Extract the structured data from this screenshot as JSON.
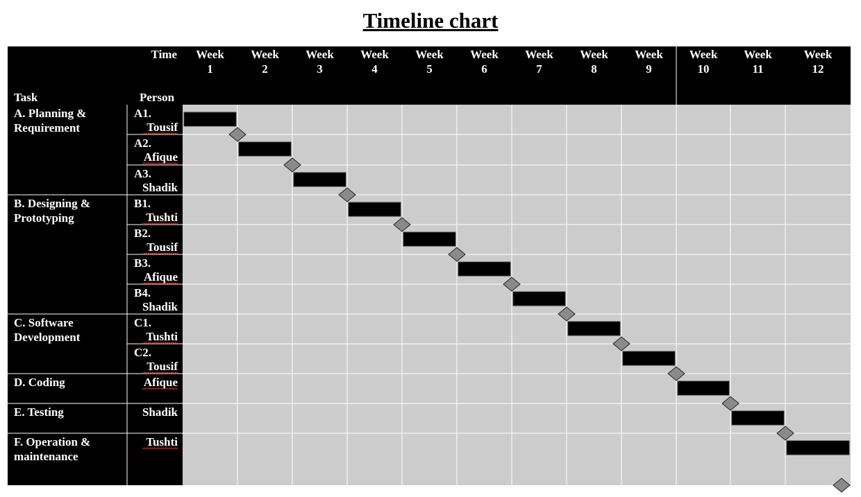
{
  "title": "Timeline chart",
  "header": {
    "time_label": "Time",
    "task_label": "Task",
    "person_label": "Person"
  },
  "colors": {
    "header_bg": "#000000",
    "grid_bg": "#cccccc",
    "bar": "#000000",
    "milestone": "#8a8a8a",
    "text": "#ffffff"
  },
  "chart_data": {
    "type": "gantt",
    "title": "Timeline chart",
    "weeks": [
      "Week 1",
      "Week 2",
      "Week 3",
      "Week 4",
      "Week 5",
      "Week 6",
      "Week 7",
      "Week 8",
      "Week 9",
      "Week 10",
      "Week 11",
      "Week 12"
    ],
    "groups": [
      {
        "task": "A. Planning & Requirement",
        "rows": [
          0,
          1,
          2
        ]
      },
      {
        "task": "B. Designing & Prototyping",
        "rows": [
          3,
          4,
          5,
          6
        ]
      },
      {
        "task": "C. Software Development",
        "rows": [
          7,
          8
        ]
      },
      {
        "task": "D. Coding",
        "rows": [
          9
        ]
      },
      {
        "task": "E. Testing",
        "rows": [
          10
        ]
      },
      {
        "task": "F. Operation & maintenance",
        "rows": [
          11
        ]
      }
    ],
    "rows": [
      {
        "code": "A1.",
        "person": "Tousif",
        "start_week": 1.0,
        "end_week": 2.0
      },
      {
        "code": "A2.",
        "person": "Afique",
        "start_week": 2.0,
        "end_week": 3.0
      },
      {
        "code": "A3.",
        "person": "Shadik",
        "start_week": 3.0,
        "end_week": 4.0
      },
      {
        "code": "B1.",
        "person": "Tushti",
        "start_week": 4.0,
        "end_week": 5.0
      },
      {
        "code": "B2.",
        "person": "Tousif",
        "start_week": 5.0,
        "end_week": 6.0
      },
      {
        "code": "B3.",
        "person": "Afique",
        "start_week": 6.0,
        "end_week": 7.0
      },
      {
        "code": "B4.",
        "person": "Shadik",
        "start_week": 7.0,
        "end_week": 8.0
      },
      {
        "code": "C1.",
        "person": "Tushti",
        "start_week": 8.0,
        "end_week": 9.0
      },
      {
        "code": "C2.",
        "person": "Tousif",
        "start_week": 9.0,
        "end_week": 10.0
      },
      {
        "code": "",
        "person": "Afique",
        "start_week": 10.0,
        "end_week": 11.0
      },
      {
        "code": "",
        "person": "Shadik",
        "start_week": 11.0,
        "end_week": 12.0
      },
      {
        "code": "",
        "person": "Tushti",
        "start_week": 12.0,
        "end_week": 13.0
      }
    ],
    "milestones": [
      2.0,
      3.0,
      4.0,
      5.0,
      6.0,
      7.0,
      8.0,
      9.0,
      10.0,
      11.0,
      12.0,
      13.0
    ]
  }
}
